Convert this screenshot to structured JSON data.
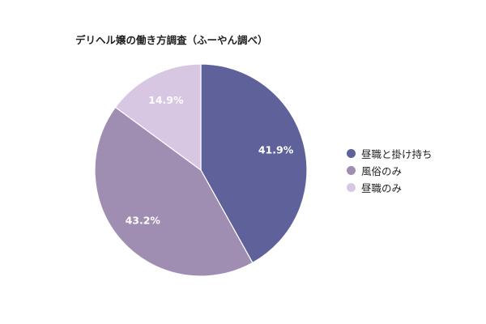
{
  "chart_data": {
    "type": "pie",
    "title": "デリヘル嬢の働き方調査（ふーやん調べ）",
    "categories": [
      "昼職と掛け持ち",
      "風俗のみ",
      "昼職のみ"
    ],
    "values": [
      41.9,
      43.2,
      14.9
    ],
    "labels": [
      "41.9%",
      "43.2%",
      "14.9%"
    ],
    "colors": [
      "#5f629a",
      "#a08eb2",
      "#d8c7e2"
    ],
    "legend_position": "right"
  }
}
